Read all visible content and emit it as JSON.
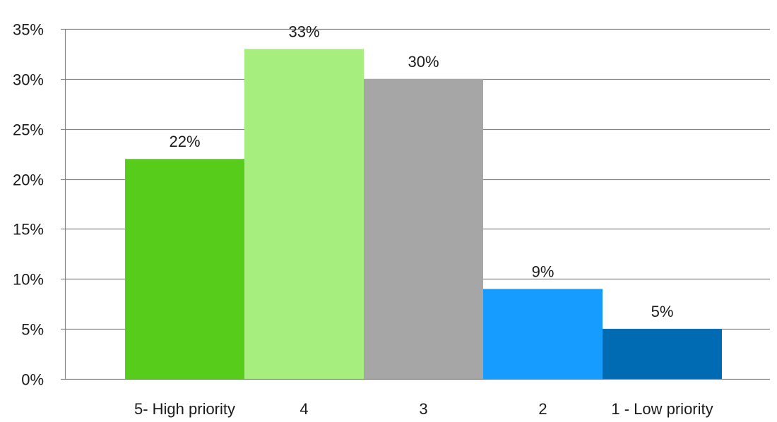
{
  "chart_data": {
    "type": "bar",
    "title": "",
    "xlabel": "",
    "ylabel": "",
    "categories": [
      "5- High priority",
      "4",
      "3",
      "2",
      "1 - Low priority"
    ],
    "values": [
      22,
      33,
      30,
      9,
      5
    ],
    "data_labels": [
      "22%",
      "33%",
      "30%",
      "9%",
      "5%"
    ],
    "bar_colors": [
      "#57cc1a",
      "#a6ef7e",
      "#a6a6a6",
      "#169cff",
      "#006bb3"
    ],
    "ylim": [
      0,
      35
    ],
    "y_ticks": [
      0,
      5,
      10,
      15,
      20,
      25,
      30,
      35
    ],
    "y_tick_labels": [
      "0%",
      "5%",
      "10%",
      "15%",
      "20%",
      "25%",
      "30%",
      "35%"
    ],
    "grid": true,
    "legend": "none",
    "gridline_color": "#868686"
  }
}
